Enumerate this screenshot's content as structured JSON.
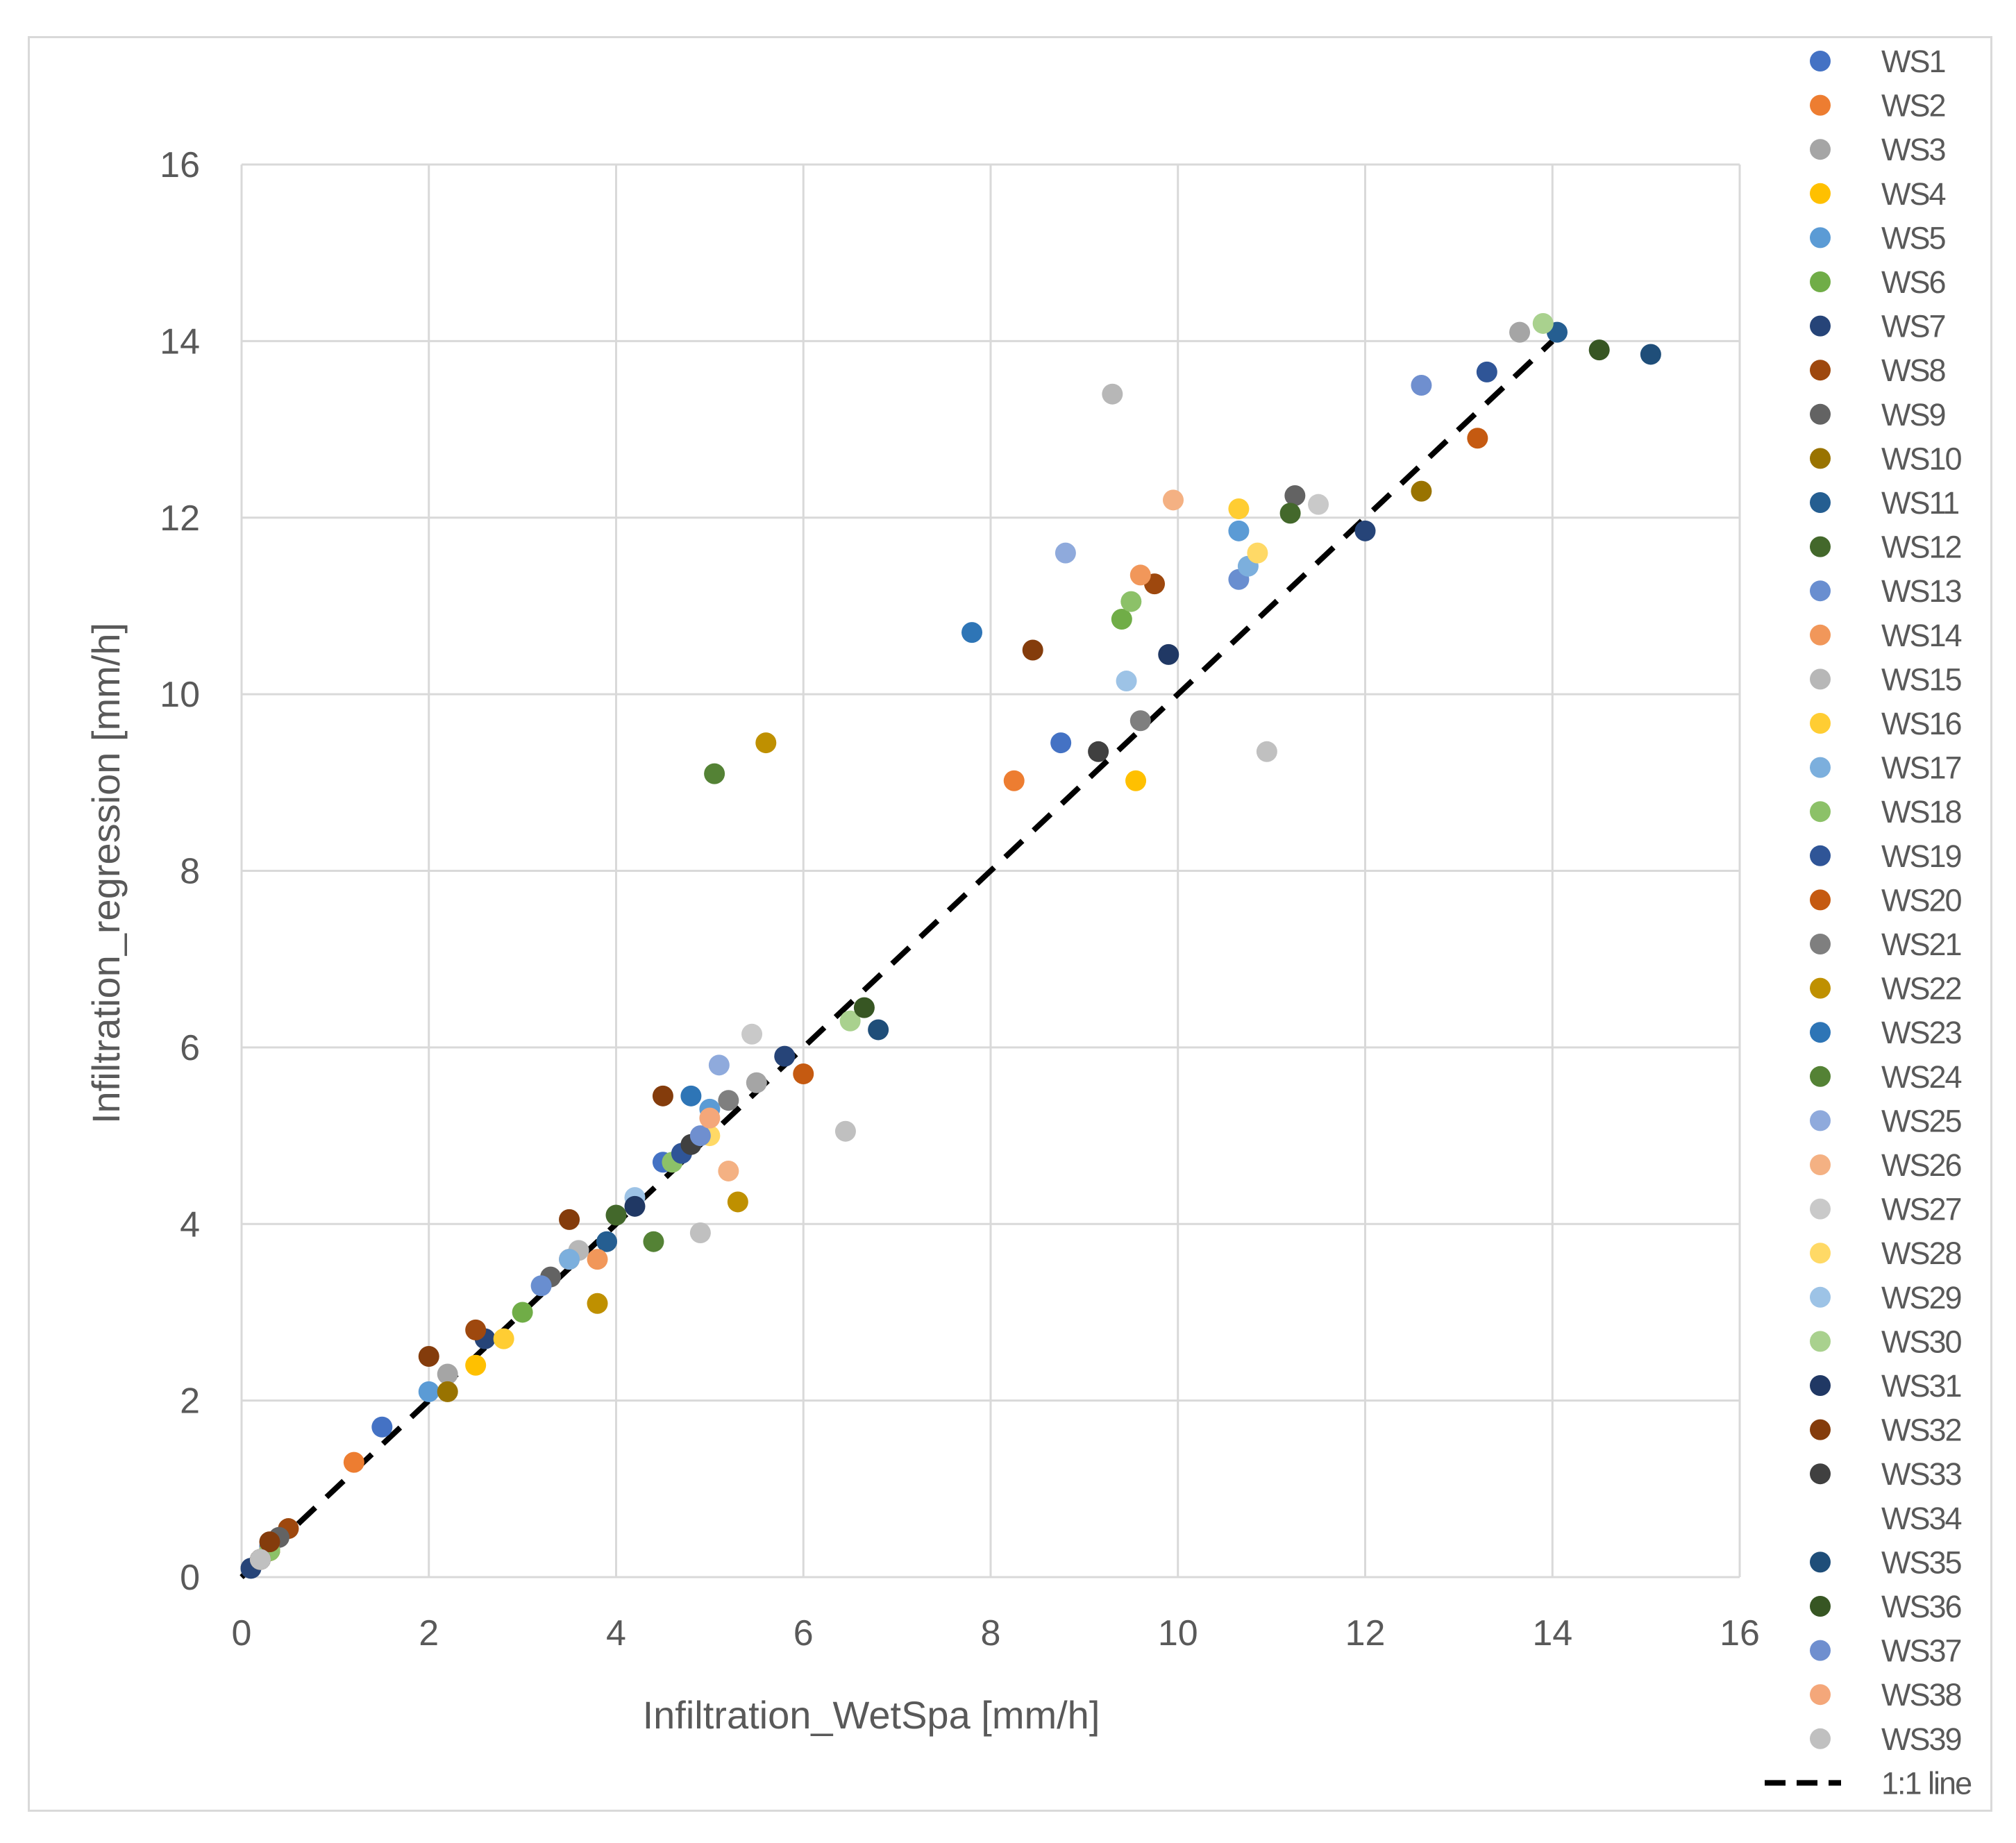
{
  "chart_data": {
    "type": "scatter",
    "title": "",
    "xlabel": "Infiltration_WetSpa [mm/h]",
    "ylabel": "Infiltration_regression [mm/h]",
    "xlim": [
      0,
      16
    ],
    "ylim": [
      0,
      16
    ],
    "xticks": [
      "0",
      "2",
      "4",
      "6",
      "8",
      "10",
      "12",
      "14",
      "16"
    ],
    "yticks": [
      "0",
      "2",
      "4",
      "6",
      "8",
      "10",
      "12",
      "14",
      "16"
    ],
    "grid": true,
    "legend_position": "right",
    "reference_line": {
      "name": "1:1 line",
      "x": [
        0,
        14
      ],
      "y": [
        0,
        14
      ],
      "style": "dashed",
      "color": "#000000"
    },
    "series": [
      {
        "name": "WS1",
        "color": "#4472C4",
        "points": [
          [
            0.1,
            0.1
          ],
          [
            0.3,
            0.35
          ],
          [
            1.5,
            1.7
          ],
          [
            4.5,
            4.7
          ],
          [
            8.75,
            9.45
          ]
        ]
      },
      {
        "name": "WS2",
        "color": "#ED7D31",
        "points": [
          [
            0.2,
            0.2
          ],
          [
            1.2,
            1.3
          ],
          [
            3.5,
            3.6
          ],
          [
            8.25,
            9.02
          ]
        ]
      },
      {
        "name": "WS3",
        "color": "#A5A5A5",
        "points": [
          [
            0.1,
            0.1
          ],
          [
            2.2,
            2.3
          ],
          [
            5.5,
            5.6
          ],
          [
            13.65,
            14.1
          ]
        ]
      },
      {
        "name": "WS4",
        "color": "#FFC000",
        "points": [
          [
            0.3,
            0.3
          ],
          [
            2.5,
            2.4
          ],
          [
            9.55,
            9.02
          ]
        ]
      },
      {
        "name": "WS5",
        "color": "#5B9BD5",
        "points": [
          [
            0.2,
            0.2
          ],
          [
            2.0,
            2.1
          ],
          [
            5.0,
            5.3
          ],
          [
            10.65,
            11.85
          ]
        ]
      },
      {
        "name": "WS6",
        "color": "#70AD47",
        "points": [
          [
            0.3,
            0.3
          ],
          [
            3.0,
            3.0
          ],
          [
            9.4,
            10.85
          ]
        ]
      },
      {
        "name": "WS7",
        "color": "#264478",
        "points": [
          [
            0.1,
            0.1
          ],
          [
            2.6,
            2.7
          ],
          [
            5.8,
            5.9
          ],
          [
            12.0,
            11.85
          ]
        ]
      },
      {
        "name": "WS8",
        "color": "#9E480E",
        "points": [
          [
            0.5,
            0.55
          ],
          [
            2.5,
            2.8
          ],
          [
            9.75,
            11.25
          ]
        ]
      },
      {
        "name": "WS9",
        "color": "#636363",
        "points": [
          [
            0.4,
            0.45
          ],
          [
            3.3,
            3.4
          ],
          [
            11.25,
            12.25
          ]
        ]
      },
      {
        "name": "WS10",
        "color": "#997300",
        "points": [
          [
            0.3,
            0.3
          ],
          [
            2.2,
            2.1
          ],
          [
            12.6,
            12.3
          ]
        ]
      },
      {
        "name": "WS11",
        "color": "#255E91",
        "points": [
          [
            0.2,
            0.2
          ],
          [
            3.9,
            3.8
          ],
          [
            14.05,
            14.1
          ]
        ]
      },
      {
        "name": "WS12",
        "color": "#43682B",
        "points": [
          [
            0.3,
            0.3
          ],
          [
            4.0,
            4.1
          ],
          [
            11.2,
            12.05
          ]
        ]
      },
      {
        "name": "WS13",
        "color": "#698ED0",
        "points": [
          [
            0.2,
            0.2
          ],
          [
            3.2,
            3.3
          ],
          [
            10.65,
            11.3
          ]
        ]
      },
      {
        "name": "WS14",
        "color": "#F1975A",
        "points": [
          [
            0.3,
            0.3
          ],
          [
            3.8,
            3.6
          ],
          [
            9.6,
            11.35
          ]
        ]
      },
      {
        "name": "WS15",
        "color": "#B7B7B7",
        "points": [
          [
            0.2,
            0.2
          ],
          [
            3.6,
            3.7
          ],
          [
            9.3,
            13.4
          ]
        ]
      },
      {
        "name": "WS16",
        "color": "#FFCD33",
        "points": [
          [
            0.2,
            0.2
          ],
          [
            2.8,
            2.7
          ],
          [
            10.65,
            12.1
          ]
        ]
      },
      {
        "name": "WS17",
        "color": "#7CAFDD",
        "points": [
          [
            0.2,
            0.2
          ],
          [
            3.5,
            3.6
          ],
          [
            10.75,
            11.45
          ]
        ]
      },
      {
        "name": "WS18",
        "color": "#8CC168",
        "points": [
          [
            0.3,
            0.3
          ],
          [
            4.6,
            4.7
          ],
          [
            9.5,
            11.05
          ]
        ]
      },
      {
        "name": "WS19",
        "color": "#2F5597",
        "points": [
          [
            0.2,
            0.2
          ],
          [
            4.7,
            4.8
          ],
          [
            13.3,
            13.65
          ]
        ]
      },
      {
        "name": "WS20",
        "color": "#C55A11",
        "points": [
          [
            0.2,
            0.2
          ],
          [
            6.0,
            5.7
          ],
          [
            13.2,
            12.9
          ]
        ]
      },
      {
        "name": "WS21",
        "color": "#7F7F7F",
        "points": [
          [
            0.2,
            0.2
          ],
          [
            5.2,
            5.4
          ],
          [
            9.6,
            9.7
          ]
        ]
      },
      {
        "name": "WS22",
        "color": "#BF9000",
        "points": [
          [
            0.2,
            0.2
          ],
          [
            3.8,
            3.1
          ],
          [
            5.3,
            4.25
          ],
          [
            5.6,
            9.45
          ]
        ]
      },
      {
        "name": "WS23",
        "color": "#2E75B6",
        "points": [
          [
            0.2,
            0.2
          ],
          [
            4.8,
            5.45
          ],
          [
            7.8,
            10.7
          ]
        ]
      },
      {
        "name": "WS24",
        "color": "#548235",
        "points": [
          [
            0.2,
            0.2
          ],
          [
            4.4,
            3.8
          ],
          [
            5.05,
            9.1
          ]
        ]
      },
      {
        "name": "WS25",
        "color": "#8FAADC",
        "points": [
          [
            0.2,
            0.2
          ],
          [
            5.1,
            5.8
          ],
          [
            8.8,
            11.6
          ]
        ]
      },
      {
        "name": "WS26",
        "color": "#F4B183",
        "points": [
          [
            0.2,
            0.2
          ],
          [
            5.2,
            4.6
          ],
          [
            9.95,
            12.2
          ]
        ]
      },
      {
        "name": "WS27",
        "color": "#C9C9C9",
        "points": [
          [
            0.2,
            0.2
          ],
          [
            5.45,
            6.15
          ],
          [
            11.5,
            12.15
          ]
        ]
      },
      {
        "name": "WS28",
        "color": "#FFD966",
        "points": [
          [
            0.2,
            0.2
          ],
          [
            5.0,
            5.0
          ],
          [
            10.85,
            11.6
          ]
        ]
      },
      {
        "name": "WS29",
        "color": "#9DC3E6",
        "points": [
          [
            0.2,
            0.2
          ],
          [
            4.2,
            4.3
          ],
          [
            9.45,
            10.15
          ]
        ]
      },
      {
        "name": "WS30",
        "color": "#A9D18E",
        "points": [
          [
            0.2,
            0.2
          ],
          [
            6.5,
            6.3
          ],
          [
            13.9,
            14.2
          ]
        ]
      },
      {
        "name": "WS31",
        "color": "#203864",
        "points": [
          [
            0.2,
            0.2
          ],
          [
            4.2,
            4.2
          ],
          [
            9.9,
            10.45
          ]
        ]
      },
      {
        "name": "WS32",
        "color": "#843C0C",
        "points": [
          [
            0.3,
            0.4
          ],
          [
            2.0,
            2.5
          ],
          [
            3.5,
            4.05
          ],
          [
            4.5,
            5.45
          ],
          [
            8.45,
            10.5
          ]
        ]
      },
      {
        "name": "WS33",
        "color": "#404040",
        "points": [
          [
            0.2,
            0.2
          ],
          [
            4.8,
            4.9
          ],
          [
            9.15,
            9.35
          ]
        ]
      },
      {
        "name": "WS34",
        "color": "#FFFFFF",
        "points": []
      },
      {
        "name": "WS35",
        "color": "#1F4E79",
        "points": [
          [
            0.2,
            0.2
          ],
          [
            6.8,
            6.2
          ],
          [
            15.05,
            13.85
          ]
        ]
      },
      {
        "name": "WS36",
        "color": "#375623",
        "points": [
          [
            0.2,
            0.2
          ],
          [
            6.65,
            6.45
          ],
          [
            14.5,
            13.9
          ]
        ]
      },
      {
        "name": "WS37",
        "color": "#6F8FCF",
        "points": [
          [
            0.2,
            0.2
          ],
          [
            4.9,
            5.0
          ],
          [
            12.6,
            13.5
          ]
        ]
      },
      {
        "name": "WS38",
        "color": "#F4A77A",
        "points": [
          [
            0.2,
            0.2
          ],
          [
            5.0,
            5.2
          ]
        ]
      },
      {
        "name": "WS39",
        "color": "#C0C0C0",
        "points": [
          [
            0.2,
            0.2
          ],
          [
            6.45,
            5.05
          ],
          [
            10.95,
            9.35
          ],
          [
            4.9,
            3.9
          ]
        ]
      }
    ]
  }
}
